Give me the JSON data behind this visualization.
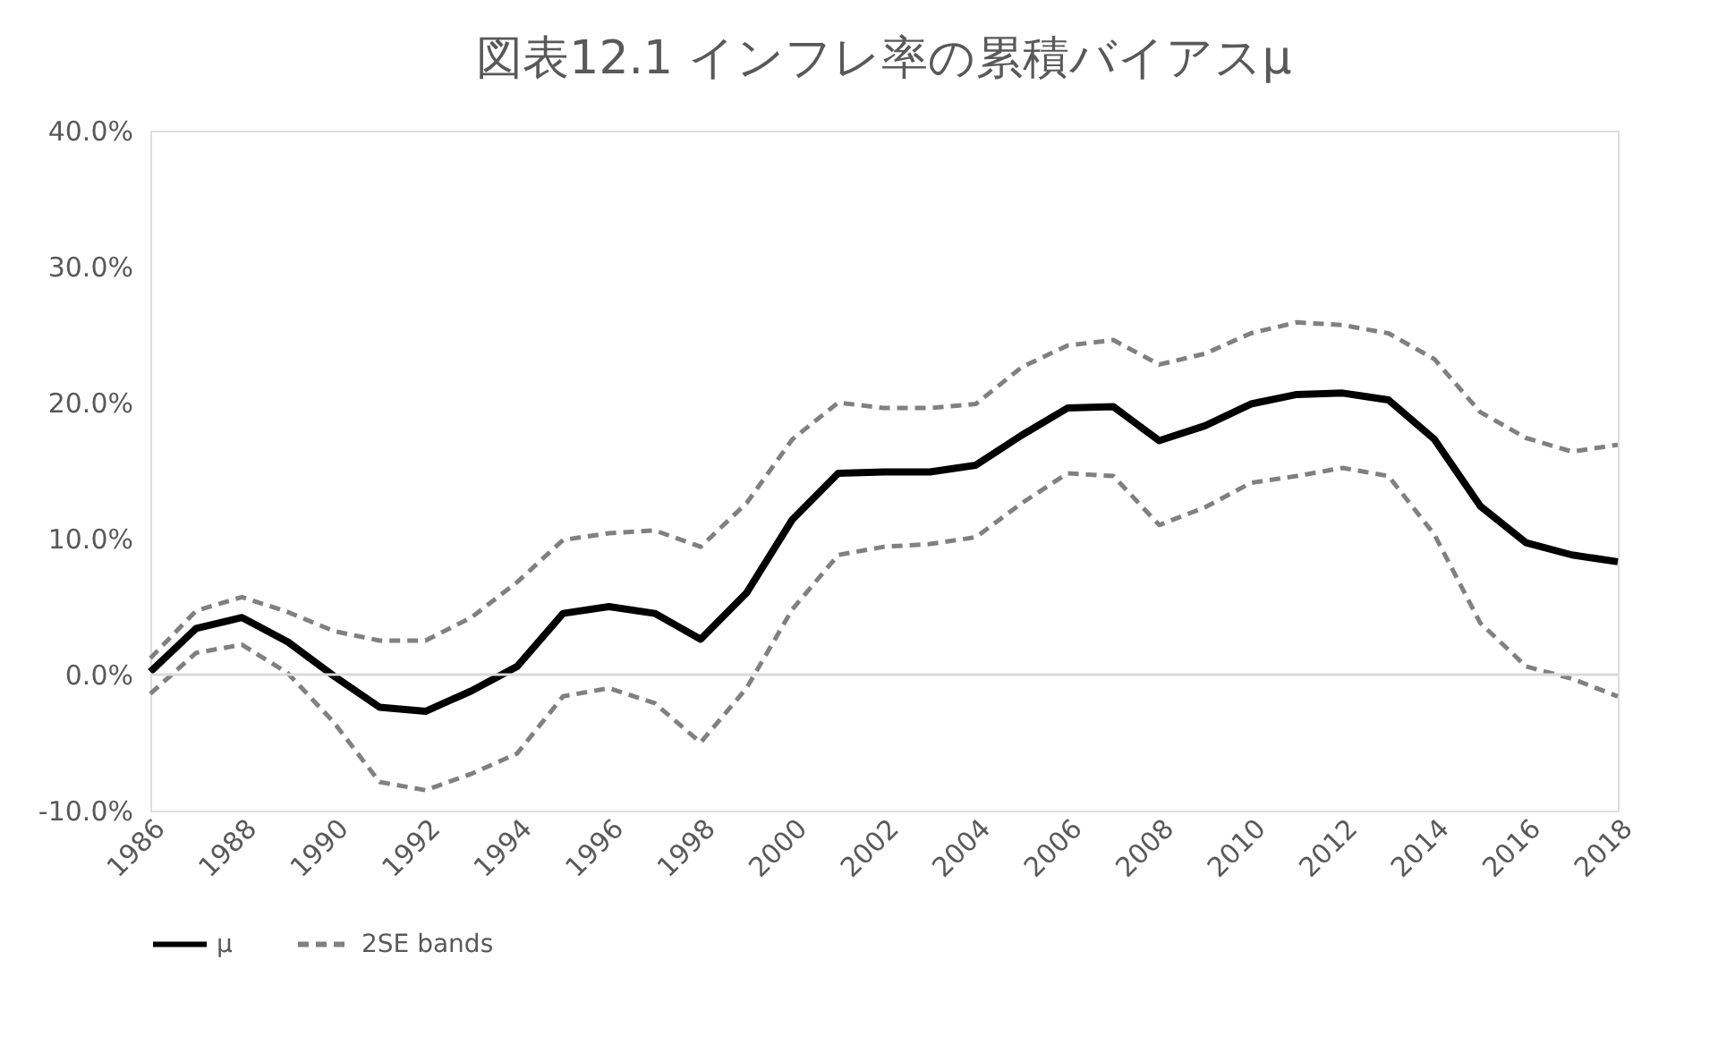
{
  "chart_data": {
    "type": "line",
    "title": "図表12.1 インフレ率の累積バイアスμ",
    "x": [
      1986,
      1987,
      1988,
      1989,
      1990,
      1991,
      1992,
      1993,
      1994,
      1995,
      1996,
      1997,
      1998,
      1999,
      2000,
      2001,
      2002,
      2003,
      2004,
      2005,
      2006,
      2007,
      2008,
      2009,
      2010,
      2011,
      2012,
      2013,
      2014,
      2015,
      2016,
      2017,
      2018
    ],
    "series": [
      {
        "name": "μ",
        "color": "#000000",
        "line_style": "solid",
        "values": [
          0.2,
          3.4,
          4.2,
          2.4,
          -0.1,
          -2.4,
          -2.7,
          -1.2,
          0.6,
          4.5,
          5.0,
          4.5,
          2.6,
          6.0,
          11.4,
          14.8,
          14.9,
          14.9,
          15.4,
          17.6,
          19.6,
          19.7,
          17.2,
          18.3,
          19.9,
          20.6,
          20.7,
          20.2,
          17.3,
          12.4,
          9.7,
          8.8,
          8.3
        ]
      },
      {
        "name": "2SE bands",
        "color": "#808080",
        "line_style": "dashed",
        "values": [
          1.2,
          4.7,
          5.7,
          4.6,
          3.2,
          2.5,
          2.5,
          4.2,
          6.8,
          9.9,
          10.4,
          10.6,
          9.4,
          12.6,
          17.3,
          20.0,
          19.6,
          19.6,
          19.9,
          22.6,
          24.2,
          24.6,
          22.8,
          23.6,
          25.1,
          25.9,
          25.7,
          25.1,
          23.2,
          19.3,
          17.4,
          16.4,
          16.9
        ]
      },
      {
        "color": "#808080",
        "line_style": "dashed",
        "values": [
          -1.4,
          1.6,
          2.2,
          0.1,
          -3.5,
          -7.9,
          -8.5,
          -7.3,
          -5.8,
          -1.6,
          -1.0,
          -2.1,
          -5.0,
          -1.0,
          4.8,
          8.8,
          9.4,
          9.6,
          10.1,
          12.6,
          14.8,
          14.6,
          11.0,
          12.3,
          14.1,
          14.6,
          15.2,
          14.6,
          10.3,
          3.8,
          0.6,
          -0.3,
          -1.6
        ]
      }
    ],
    "xlim": [
      1986,
      2018
    ],
    "xticks": [
      1986,
      1988,
      1990,
      1992,
      1994,
      1996,
      1998,
      2000,
      2002,
      2004,
      2006,
      2008,
      2010,
      2012,
      2014,
      2016,
      2018
    ],
    "ylim": [
      -10,
      40
    ],
    "yticks": [
      {
        "value": -10,
        "label": "-10.0%"
      },
      {
        "value": 0,
        "label": "0.0%"
      },
      {
        "value": 10,
        "label": "10.0%"
      },
      {
        "value": 20,
        "label": "20.0%"
      },
      {
        "value": 30,
        "label": "30.0%"
      },
      {
        "value": 40,
        "label": "40.0%"
      }
    ],
    "ref_lines": [
      {
        "axis": "y",
        "value": 0,
        "color": "#d9d9d9"
      }
    ],
    "grid": false,
    "legend": "bottom",
    "marker": "none"
  }
}
